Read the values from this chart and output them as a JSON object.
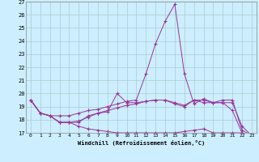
{
  "xlabel": "Windchill (Refroidissement éolien,°C)",
  "background_color": "#cceeff",
  "line_color": "#993399",
  "grid_color": "#aacccc",
  "xlim": [
    -0.5,
    23.5
  ],
  "ylim": [
    17,
    27
  ],
  "yticks": [
    17,
    18,
    19,
    20,
    21,
    22,
    23,
    24,
    25,
    26,
    27
  ],
  "xticks": [
    0,
    1,
    2,
    3,
    4,
    5,
    6,
    7,
    8,
    9,
    10,
    11,
    12,
    13,
    14,
    15,
    16,
    17,
    18,
    19,
    20,
    21,
    22,
    23
  ],
  "series": [
    [
      19.5,
      18.5,
      18.3,
      17.8,
      17.8,
      17.8,
      18.3,
      18.5,
      18.6,
      20.0,
      19.3,
      19.3,
      19.4,
      19.5,
      19.5,
      19.2,
      19.0,
      19.5,
      19.5,
      19.3,
      19.3,
      18.7,
      17.0,
      16.8
    ],
    [
      19.5,
      18.5,
      18.3,
      18.3,
      18.3,
      18.5,
      18.7,
      18.8,
      19.0,
      19.2,
      19.4,
      19.5,
      21.5,
      23.8,
      25.5,
      26.8,
      21.5,
      19.2,
      19.6,
      19.3,
      19.5,
      19.5,
      17.2,
      16.8
    ],
    [
      19.5,
      18.5,
      18.3,
      17.8,
      17.8,
      17.9,
      18.2,
      18.5,
      18.7,
      18.9,
      19.1,
      19.2,
      19.4,
      19.5,
      19.5,
      19.3,
      19.1,
      19.5,
      19.3,
      19.3,
      19.3,
      19.3,
      17.5,
      16.8
    ],
    [
      19.5,
      18.5,
      18.3,
      17.8,
      17.8,
      17.5,
      17.3,
      17.2,
      17.1,
      17.0,
      17.0,
      17.0,
      17.0,
      17.0,
      17.0,
      17.0,
      17.1,
      17.2,
      17.3,
      17.0,
      17.0,
      17.0,
      17.0,
      16.8
    ]
  ]
}
